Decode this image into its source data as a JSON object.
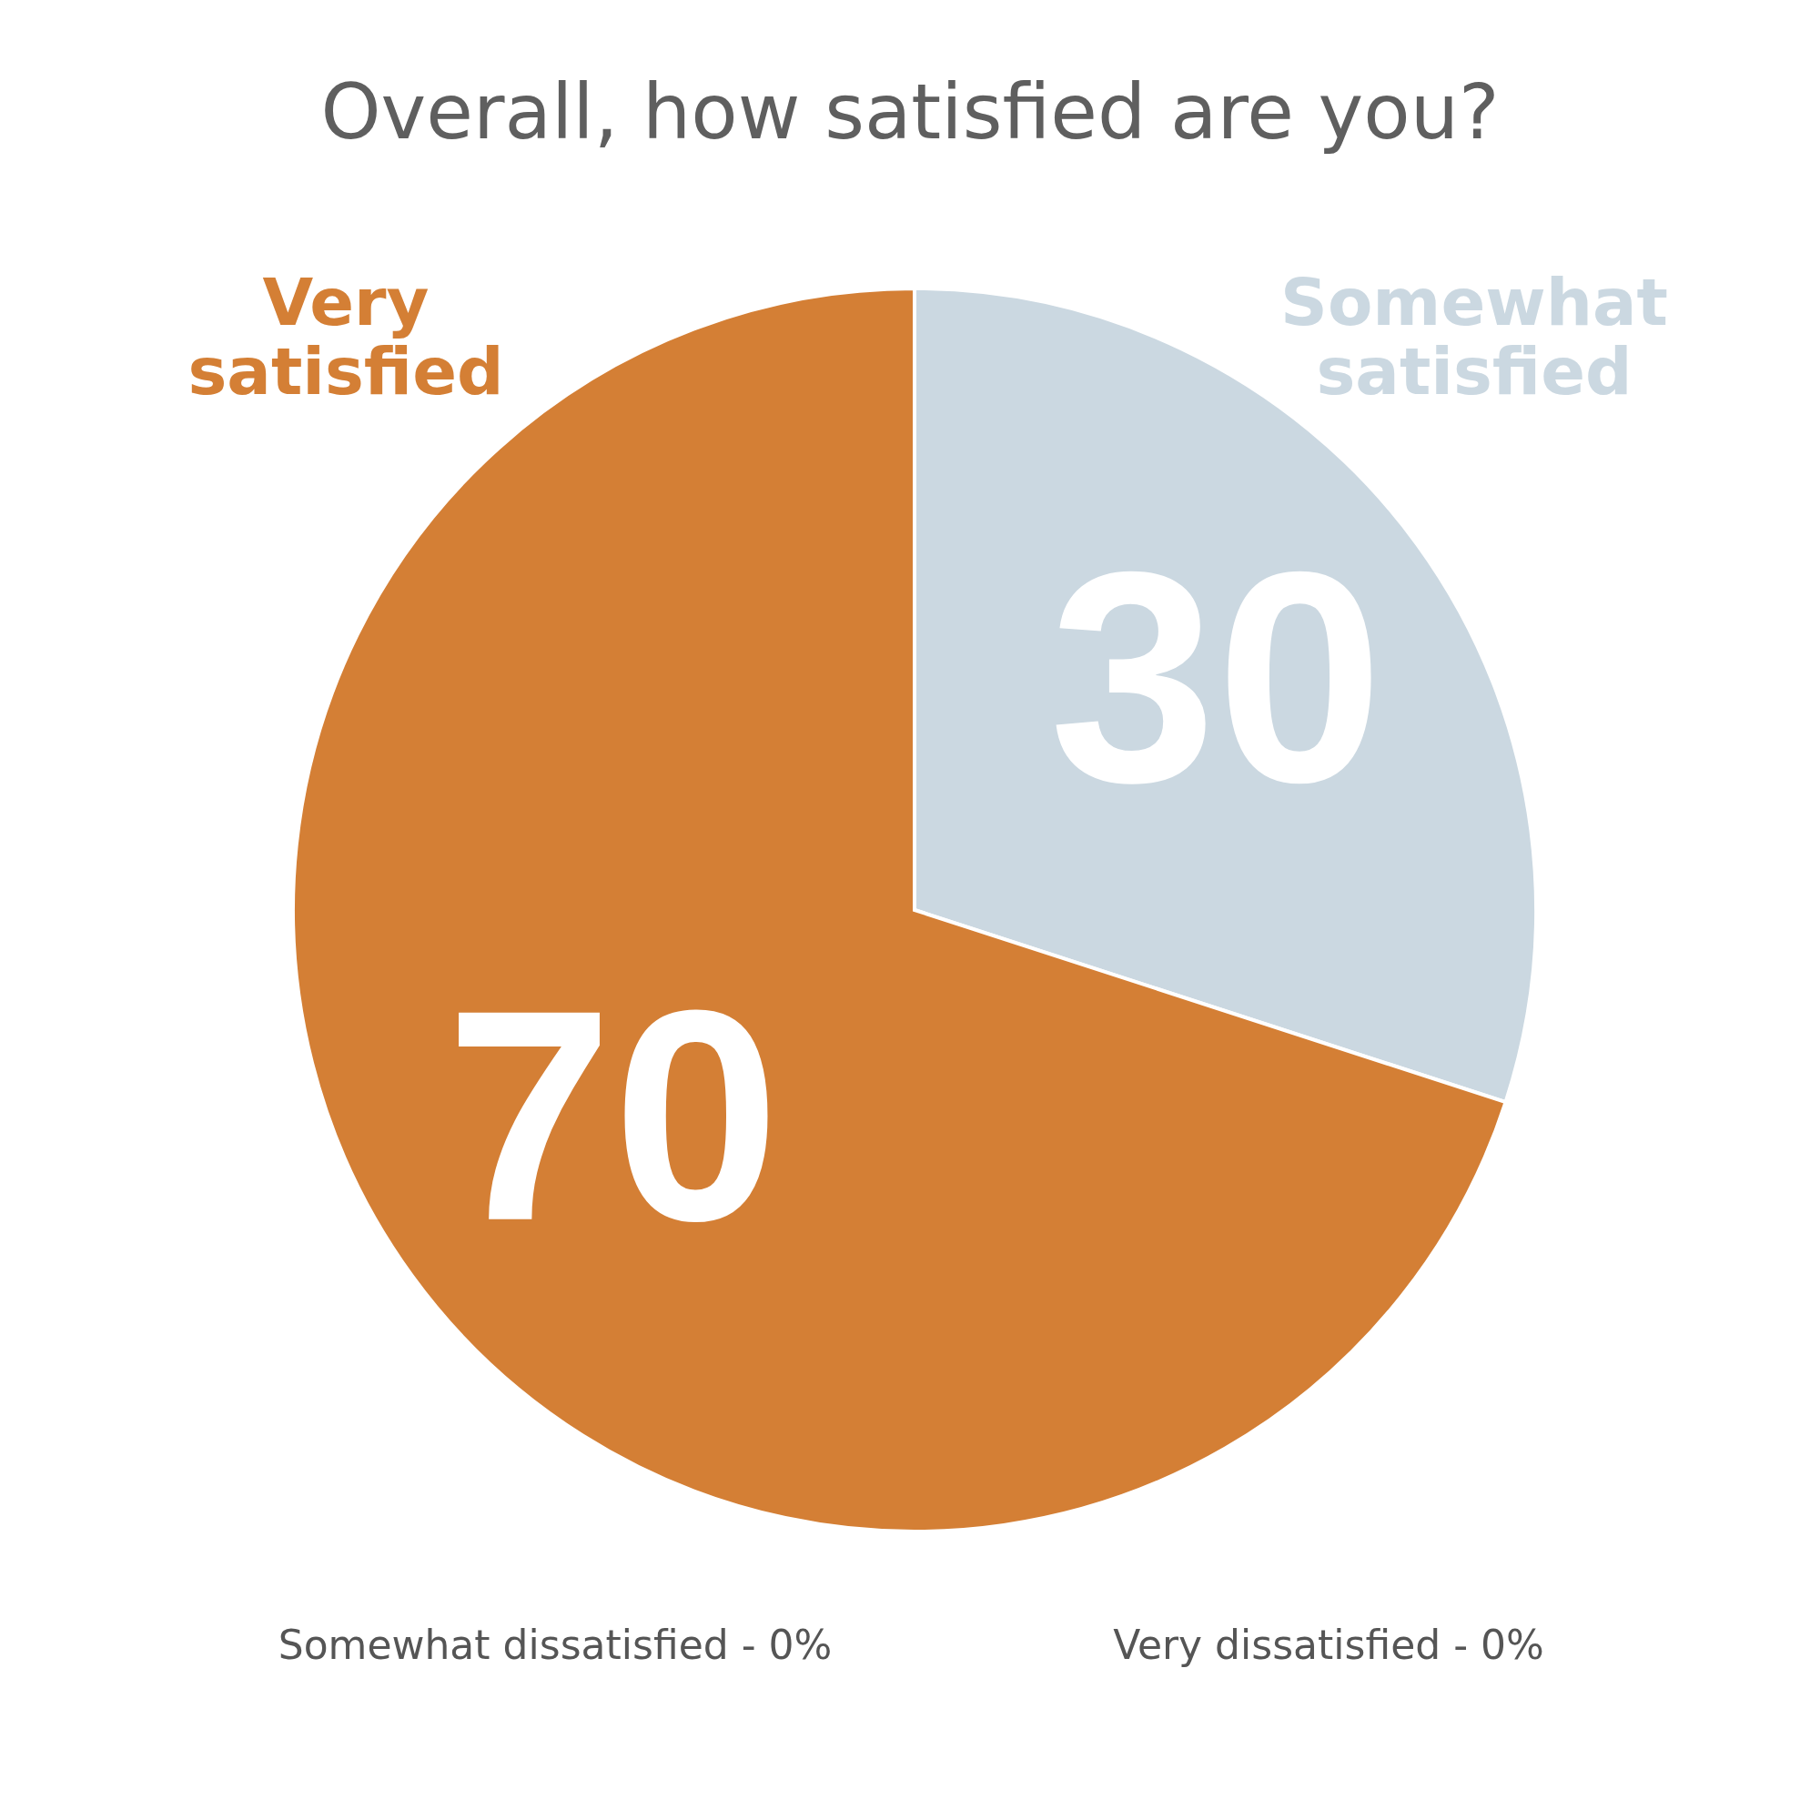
{
  "chart_data": {
    "type": "pie",
    "title": "Overall, how satisfied are you?",
    "categories": [
      "Somewhat satisfied",
      "Very satisfied"
    ],
    "values": [
      30,
      70
    ],
    "colors": [
      "#cbd8e1",
      "#d47f35"
    ],
    "data_labels": true,
    "legend": false,
    "annotations": [
      "Somewhat dissatisfied - 0%",
      "Very dissatisfied - 0%"
    ]
  }
}
